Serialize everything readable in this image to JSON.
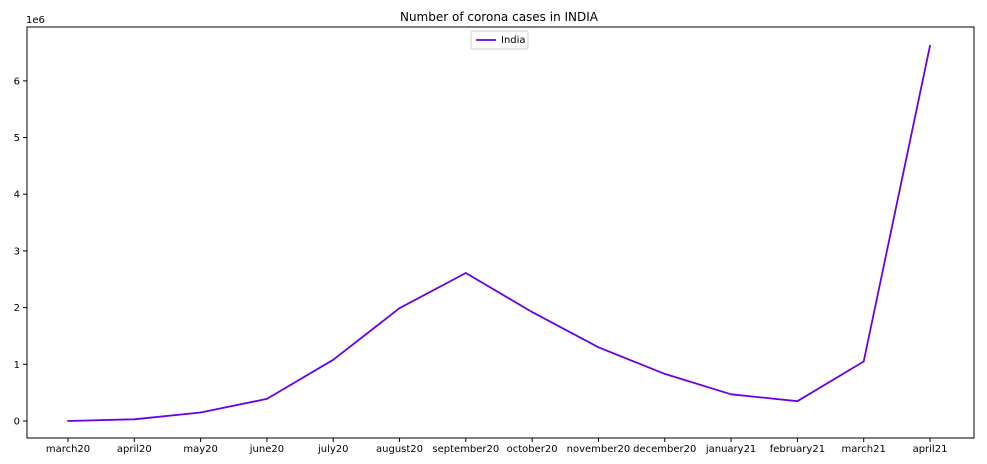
{
  "chart_data": {
    "type": "line",
    "title": "Number of corona cases in INDIA",
    "xlabel": "",
    "ylabel": "",
    "y_scale_label": "1e6",
    "categories": [
      "march20",
      "april20",
      "may20",
      "june20",
      "july20",
      "august20",
      "september20",
      "october20",
      "november20",
      "december20",
      "january21",
      "february21",
      "march21",
      "april21"
    ],
    "series": [
      {
        "name": "India",
        "color": "#6a00e8",
        "values": [
          0.0,
          30000,
          150000,
          390000,
          1080000,
          1990000,
          2610000,
          1920000,
          1300000,
          830000,
          470000,
          350000,
          1050000,
          6620000
        ]
      }
    ],
    "ylim": [
      -300000,
      6950000
    ],
    "yticks": [
      0,
      1000000,
      2000000,
      3000000,
      4000000,
      5000000,
      6000000
    ],
    "ytick_labels": [
      "0",
      "1",
      "2",
      "3",
      "4",
      "5",
      "6"
    ],
    "grid": false,
    "legend_position": "top-center"
  }
}
